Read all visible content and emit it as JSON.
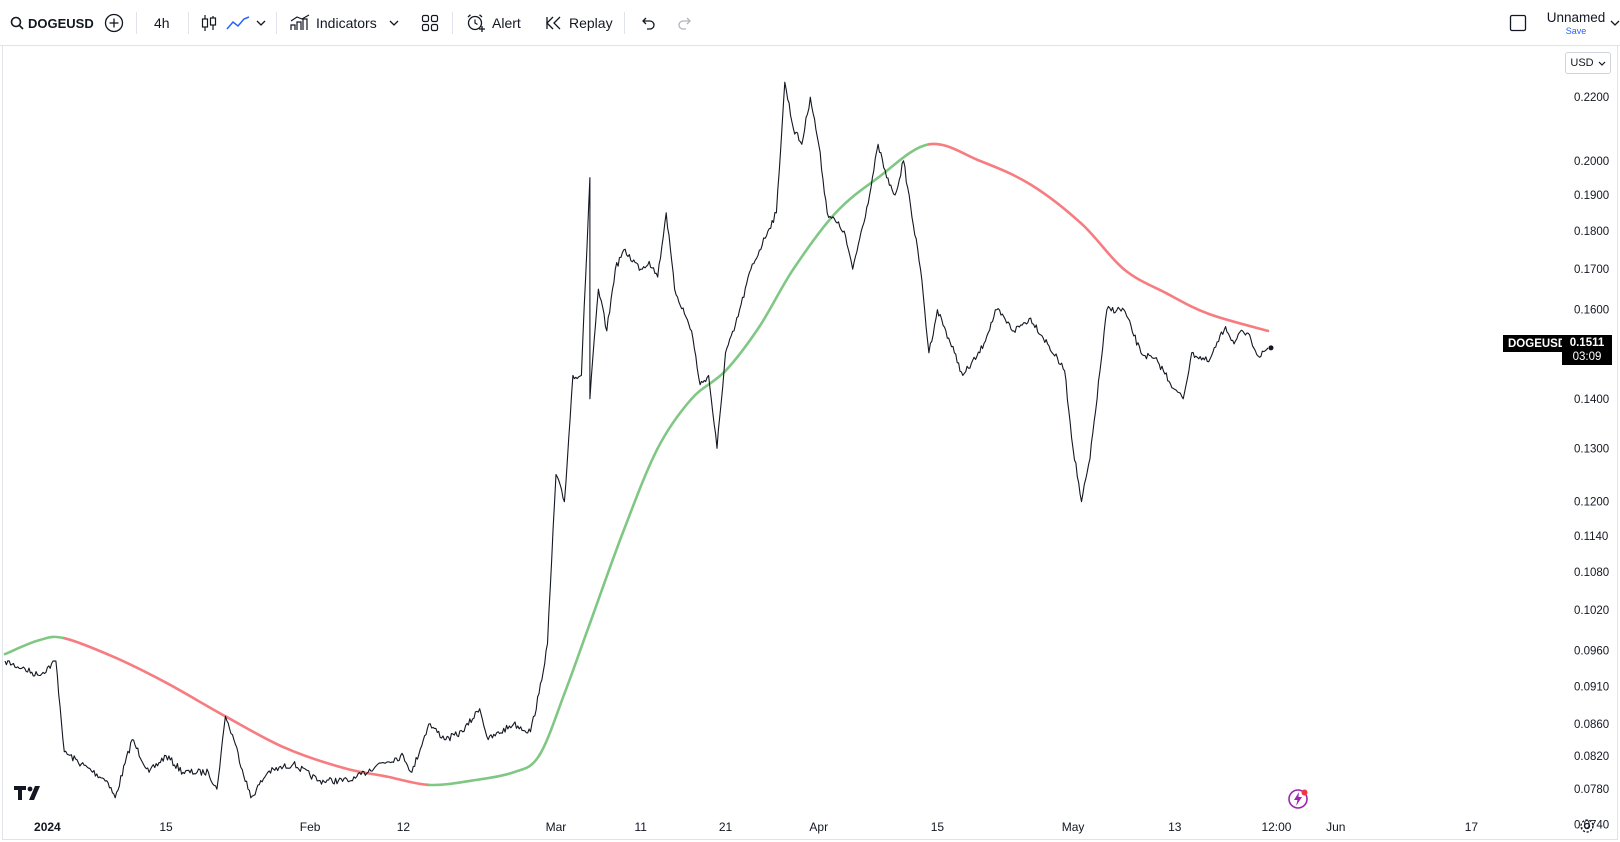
{
  "toolbar": {
    "symbol": "DOGEUSD",
    "interval": "4h",
    "indicators_label": "Indicators",
    "alert_label": "Alert",
    "replay_label": "Replay",
    "layout_name": "Unnamed",
    "save_label": "Save"
  },
  "price_axis": {
    "currency": "USD",
    "labels": [
      "0.2200",
      "0.2000",
      "0.1900",
      "0.1800",
      "0.1700",
      "0.1600",
      "0.1400",
      "0.1300",
      "0.1200",
      "0.1140",
      "0.1080",
      "0.1020",
      "0.0960",
      "0.0910",
      "0.0860",
      "0.0820",
      "0.0780",
      "0.0740"
    ]
  },
  "time_axis": {
    "labels": [
      "2024",
      "15",
      "Feb",
      "12",
      "Mar",
      "11",
      "21",
      "Apr",
      "15",
      "May",
      "13",
      "12:00",
      "Jun",
      "17"
    ]
  },
  "last": {
    "symbol_tag": "DOGEUSD",
    "price": "0.1511",
    "countdown": "03:09"
  },
  "colors": {
    "price_line": "#131722",
    "ma_up": "#81c784",
    "ma_down": "#f77c80",
    "label_bg": "#000000",
    "accent": "#2962ff"
  },
  "chart_data": {
    "type": "line",
    "x_start": "2023-12-27",
    "x_end": "2024-05-24",
    "y_scale": "log",
    "series": [
      {
        "name": "DOGEUSD",
        "points": [
          [
            "2023-12-27",
            0.0945
          ],
          [
            "2023-12-29",
            0.0935
          ],
          [
            "2023-12-31",
            0.0925
          ],
          [
            "2024-01-02",
            0.0945
          ],
          [
            "2024-01-03",
            0.0825
          ],
          [
            "2024-01-05",
            0.081
          ],
          [
            "2024-01-08",
            0.079
          ],
          [
            "2024-01-09",
            0.077
          ],
          [
            "2024-01-11",
            0.084
          ],
          [
            "2024-01-13",
            0.08
          ],
          [
            "2024-01-15",
            0.082
          ],
          [
            "2024-01-17",
            0.08
          ],
          [
            "2024-01-20",
            0.08
          ],
          [
            "2024-01-21",
            0.078
          ],
          [
            "2024-01-22",
            0.087
          ],
          [
            "2024-01-23",
            0.084
          ],
          [
            "2024-01-25",
            0.077
          ],
          [
            "2024-01-27",
            0.08
          ],
          [
            "2024-01-30",
            0.081
          ],
          [
            "2024-02-02",
            0.079
          ],
          [
            "2024-02-06",
            0.079
          ],
          [
            "2024-02-09",
            0.081
          ],
          [
            "2024-02-12",
            0.082
          ],
          [
            "2024-02-13",
            0.08
          ],
          [
            "2024-02-15",
            0.086
          ],
          [
            "2024-02-17",
            0.084
          ],
          [
            "2024-02-19",
            0.085
          ],
          [
            "2024-02-21",
            0.088
          ],
          [
            "2024-02-22",
            0.084
          ],
          [
            "2024-02-25",
            0.086
          ],
          [
            "2024-02-27",
            0.085
          ],
          [
            "2024-02-28",
            0.09
          ],
          [
            "2024-02-29",
            0.097
          ],
          [
            "2024-03-01",
            0.125
          ],
          [
            "2024-03-02",
            0.12
          ],
          [
            "2024-03-03",
            0.145
          ],
          [
            "2024-03-04",
            0.145
          ],
          [
            "2024-03-05",
            0.195
          ],
          [
            "2024-03-05",
            0.14
          ],
          [
            "2024-03-06",
            0.165
          ],
          [
            "2024-03-07",
            0.155
          ],
          [
            "2024-03-08",
            0.17
          ],
          [
            "2024-03-09",
            0.175
          ],
          [
            "2024-03-11",
            0.17
          ],
          [
            "2024-03-12",
            0.172
          ],
          [
            "2024-03-13",
            0.168
          ],
          [
            "2024-03-14",
            0.185
          ],
          [
            "2024-03-15",
            0.165
          ],
          [
            "2024-03-17",
            0.155
          ],
          [
            "2024-03-18",
            0.143
          ],
          [
            "2024-03-19",
            0.145
          ],
          [
            "2024-03-20",
            0.13
          ],
          [
            "2024-03-21",
            0.15
          ],
          [
            "2024-03-22",
            0.155
          ],
          [
            "2024-03-24",
            0.17
          ],
          [
            "2024-03-26",
            0.18
          ],
          [
            "2024-03-27",
            0.185
          ],
          [
            "2024-03-28",
            0.225
          ],
          [
            "2024-03-29",
            0.21
          ],
          [
            "2024-03-30",
            0.205
          ],
          [
            "2024-03-31",
            0.22
          ],
          [
            "2024-04-01",
            0.205
          ],
          [
            "2024-04-02",
            0.185
          ],
          [
            "2024-04-04",
            0.18
          ],
          [
            "2024-04-05",
            0.17
          ],
          [
            "2024-04-07",
            0.19
          ],
          [
            "2024-04-08",
            0.205
          ],
          [
            "2024-04-09",
            0.195
          ],
          [
            "2024-04-10",
            0.19
          ],
          [
            "2024-04-11",
            0.2
          ],
          [
            "2024-04-13",
            0.17
          ],
          [
            "2024-04-14",
            0.15
          ],
          [
            "2024-04-15",
            0.16
          ],
          [
            "2024-04-17",
            0.15
          ],
          [
            "2024-04-18",
            0.145
          ],
          [
            "2024-04-20",
            0.15
          ],
          [
            "2024-04-22",
            0.16
          ],
          [
            "2024-04-24",
            0.155
          ],
          [
            "2024-04-26",
            0.158
          ],
          [
            "2024-04-28",
            0.152
          ],
          [
            "2024-04-30",
            0.146
          ],
          [
            "2024-05-01",
            0.13
          ],
          [
            "2024-05-02",
            0.12
          ],
          [
            "2024-05-03",
            0.128
          ],
          [
            "2024-05-05",
            0.16
          ],
          [
            "2024-05-07",
            0.16
          ],
          [
            "2024-05-09",
            0.15
          ],
          [
            "2024-05-11",
            0.148
          ],
          [
            "2024-05-13",
            0.142
          ],
          [
            "2024-05-14",
            0.14
          ],
          [
            "2024-05-15",
            0.15
          ],
          [
            "2024-05-17",
            0.148
          ],
          [
            "2024-05-19",
            0.156
          ],
          [
            "2024-05-20",
            0.152
          ],
          [
            "2024-05-21",
            0.155
          ],
          [
            "2024-05-22",
            0.153
          ],
          [
            "2024-05-23",
            0.149
          ],
          [
            "2024-05-24",
            0.1511
          ]
        ]
      },
      {
        "name": "",
        "points": [
          [
            "2023-12-27",
            0.0955
          ],
          [
            "2023-12-31",
            0.0975
          ],
          [
            "2024-01-03",
            0.0978
          ],
          [
            "2024-01-09",
            0.095
          ],
          [
            "2024-01-15",
            0.0915
          ],
          [
            "2024-01-22",
            0.087
          ],
          [
            "2024-01-29",
            0.083
          ],
          [
            "2024-02-05",
            0.0805
          ],
          [
            "2024-02-10",
            0.0795
          ],
          [
            "2024-02-15",
            0.0785
          ],
          [
            "2024-02-20",
            0.079
          ],
          [
            "2024-02-25",
            0.08
          ],
          [
            "2024-02-28",
            0.082
          ],
          [
            "2024-03-02",
            0.09
          ],
          [
            "2024-03-05",
            0.1
          ],
          [
            "2024-03-09",
            0.115
          ],
          [
            "2024-03-13",
            0.13
          ],
          [
            "2024-03-17",
            0.14
          ],
          [
            "2024-03-21",
            0.146
          ],
          [
            "2024-03-25",
            0.156
          ],
          [
            "2024-03-29",
            0.17
          ],
          [
            "2024-04-03",
            0.185
          ],
          [
            "2024-04-08",
            0.195
          ],
          [
            "2024-04-14",
            0.205
          ],
          [
            "2024-04-20",
            0.2
          ],
          [
            "2024-04-26",
            0.193
          ],
          [
            "2024-05-02",
            0.182
          ],
          [
            "2024-05-07",
            0.17
          ],
          [
            "2024-05-12",
            0.164
          ],
          [
            "2024-05-17",
            0.159
          ],
          [
            "2024-05-24",
            0.155
          ]
        ]
      }
    ],
    "moving_average_direction_points": [
      [
        "2024-01-03",
        "down"
      ],
      [
        "2024-02-15",
        "up"
      ],
      [
        "2024-04-14",
        "down"
      ]
    ],
    "ylim": [
      0.0725,
      0.234
    ],
    "grid": false,
    "legend": "none"
  }
}
